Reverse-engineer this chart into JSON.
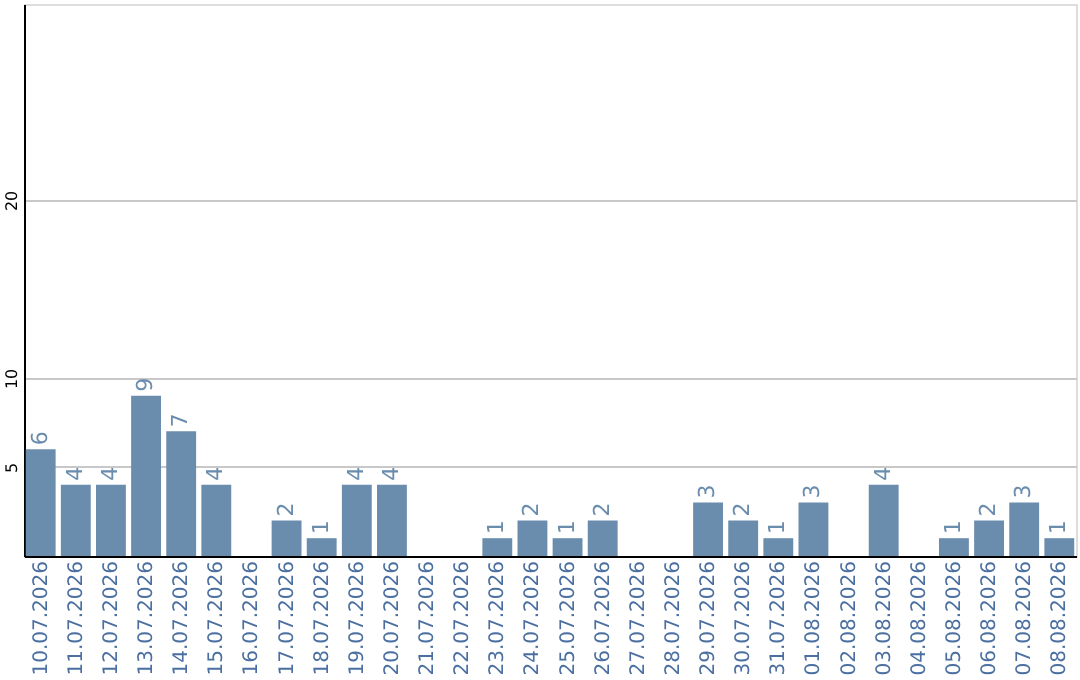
{
  "chart_data": {
    "type": "bar",
    "categories": [
      "10.07.2026",
      "11.07.2026",
      "12.07.2026",
      "13.07.2026",
      "14.07.2026",
      "15.07.2026",
      "16.07.2026",
      "17.07.2026",
      "18.07.2026",
      "19.07.2026",
      "20.07.2026",
      "21.07.2026",
      "22.07.2026",
      "23.07.2026",
      "24.07.2026",
      "25.07.2026",
      "26.07.2026",
      "27.07.2026",
      "28.07.2026",
      "29.07.2026",
      "30.07.2026",
      "31.07.2026",
      "01.08.2026",
      "02.08.2026",
      "03.08.2026",
      "04.08.2026",
      "05.08.2026",
      "06.08.2026",
      "07.08.2026",
      "08.08.2026"
    ],
    "values": [
      6,
      4,
      4,
      9,
      7,
      4,
      null,
      2,
      1,
      4,
      4,
      null,
      null,
      1,
      2,
      1,
      2,
      null,
      null,
      3,
      2,
      1,
      3,
      null,
      4,
      null,
      1,
      2,
      3,
      1
    ],
    "color": "#6a8cad",
    "ylim": [
      0,
      31
    ],
    "yticks": [
      5,
      10,
      20
    ],
    "grid": "y",
    "data_labels": true
  }
}
